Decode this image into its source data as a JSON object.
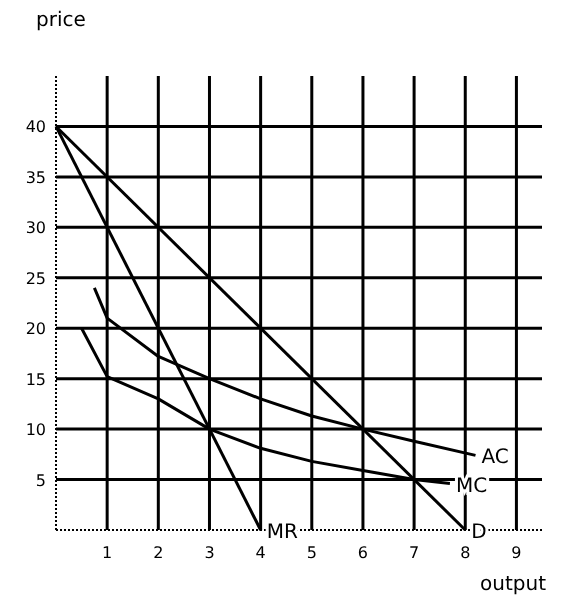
{
  "chart_data": {
    "type": "line",
    "xlabel": "output",
    "ylabel": "price",
    "xlim": [
      0,
      9.5
    ],
    "ylim": [
      0,
      45
    ],
    "xticks": [
      1,
      2,
      3,
      4,
      5,
      6,
      7,
      8,
      9
    ],
    "yticks": [
      5,
      10,
      15,
      20,
      25,
      30,
      35,
      40
    ],
    "grid": true,
    "marker": "none",
    "line_style": "solid",
    "series": [
      {
        "name": "D",
        "color": "#000000",
        "x": [
          0,
          8
        ],
        "values": [
          40,
          0
        ]
      },
      {
        "name": "MR",
        "color": "#000000",
        "x": [
          0,
          4
        ],
        "values": [
          40,
          0
        ]
      },
      {
        "name": "MC",
        "color": "#000000",
        "x": [
          0.5,
          1,
          2,
          3,
          4,
          5,
          6,
          7,
          7.7
        ],
        "values": [
          20,
          15.2,
          13,
          10,
          8.1,
          6.8,
          5.9,
          5,
          4.6
        ]
      },
      {
        "name": "AC",
        "color": "#000000",
        "x": [
          0.75,
          1,
          2,
          3,
          4,
          5,
          6,
          7,
          8.2
        ],
        "values": [
          24,
          21,
          17.2,
          15,
          13,
          11.3,
          10,
          8.8,
          7.4
        ]
      }
    ]
  }
}
